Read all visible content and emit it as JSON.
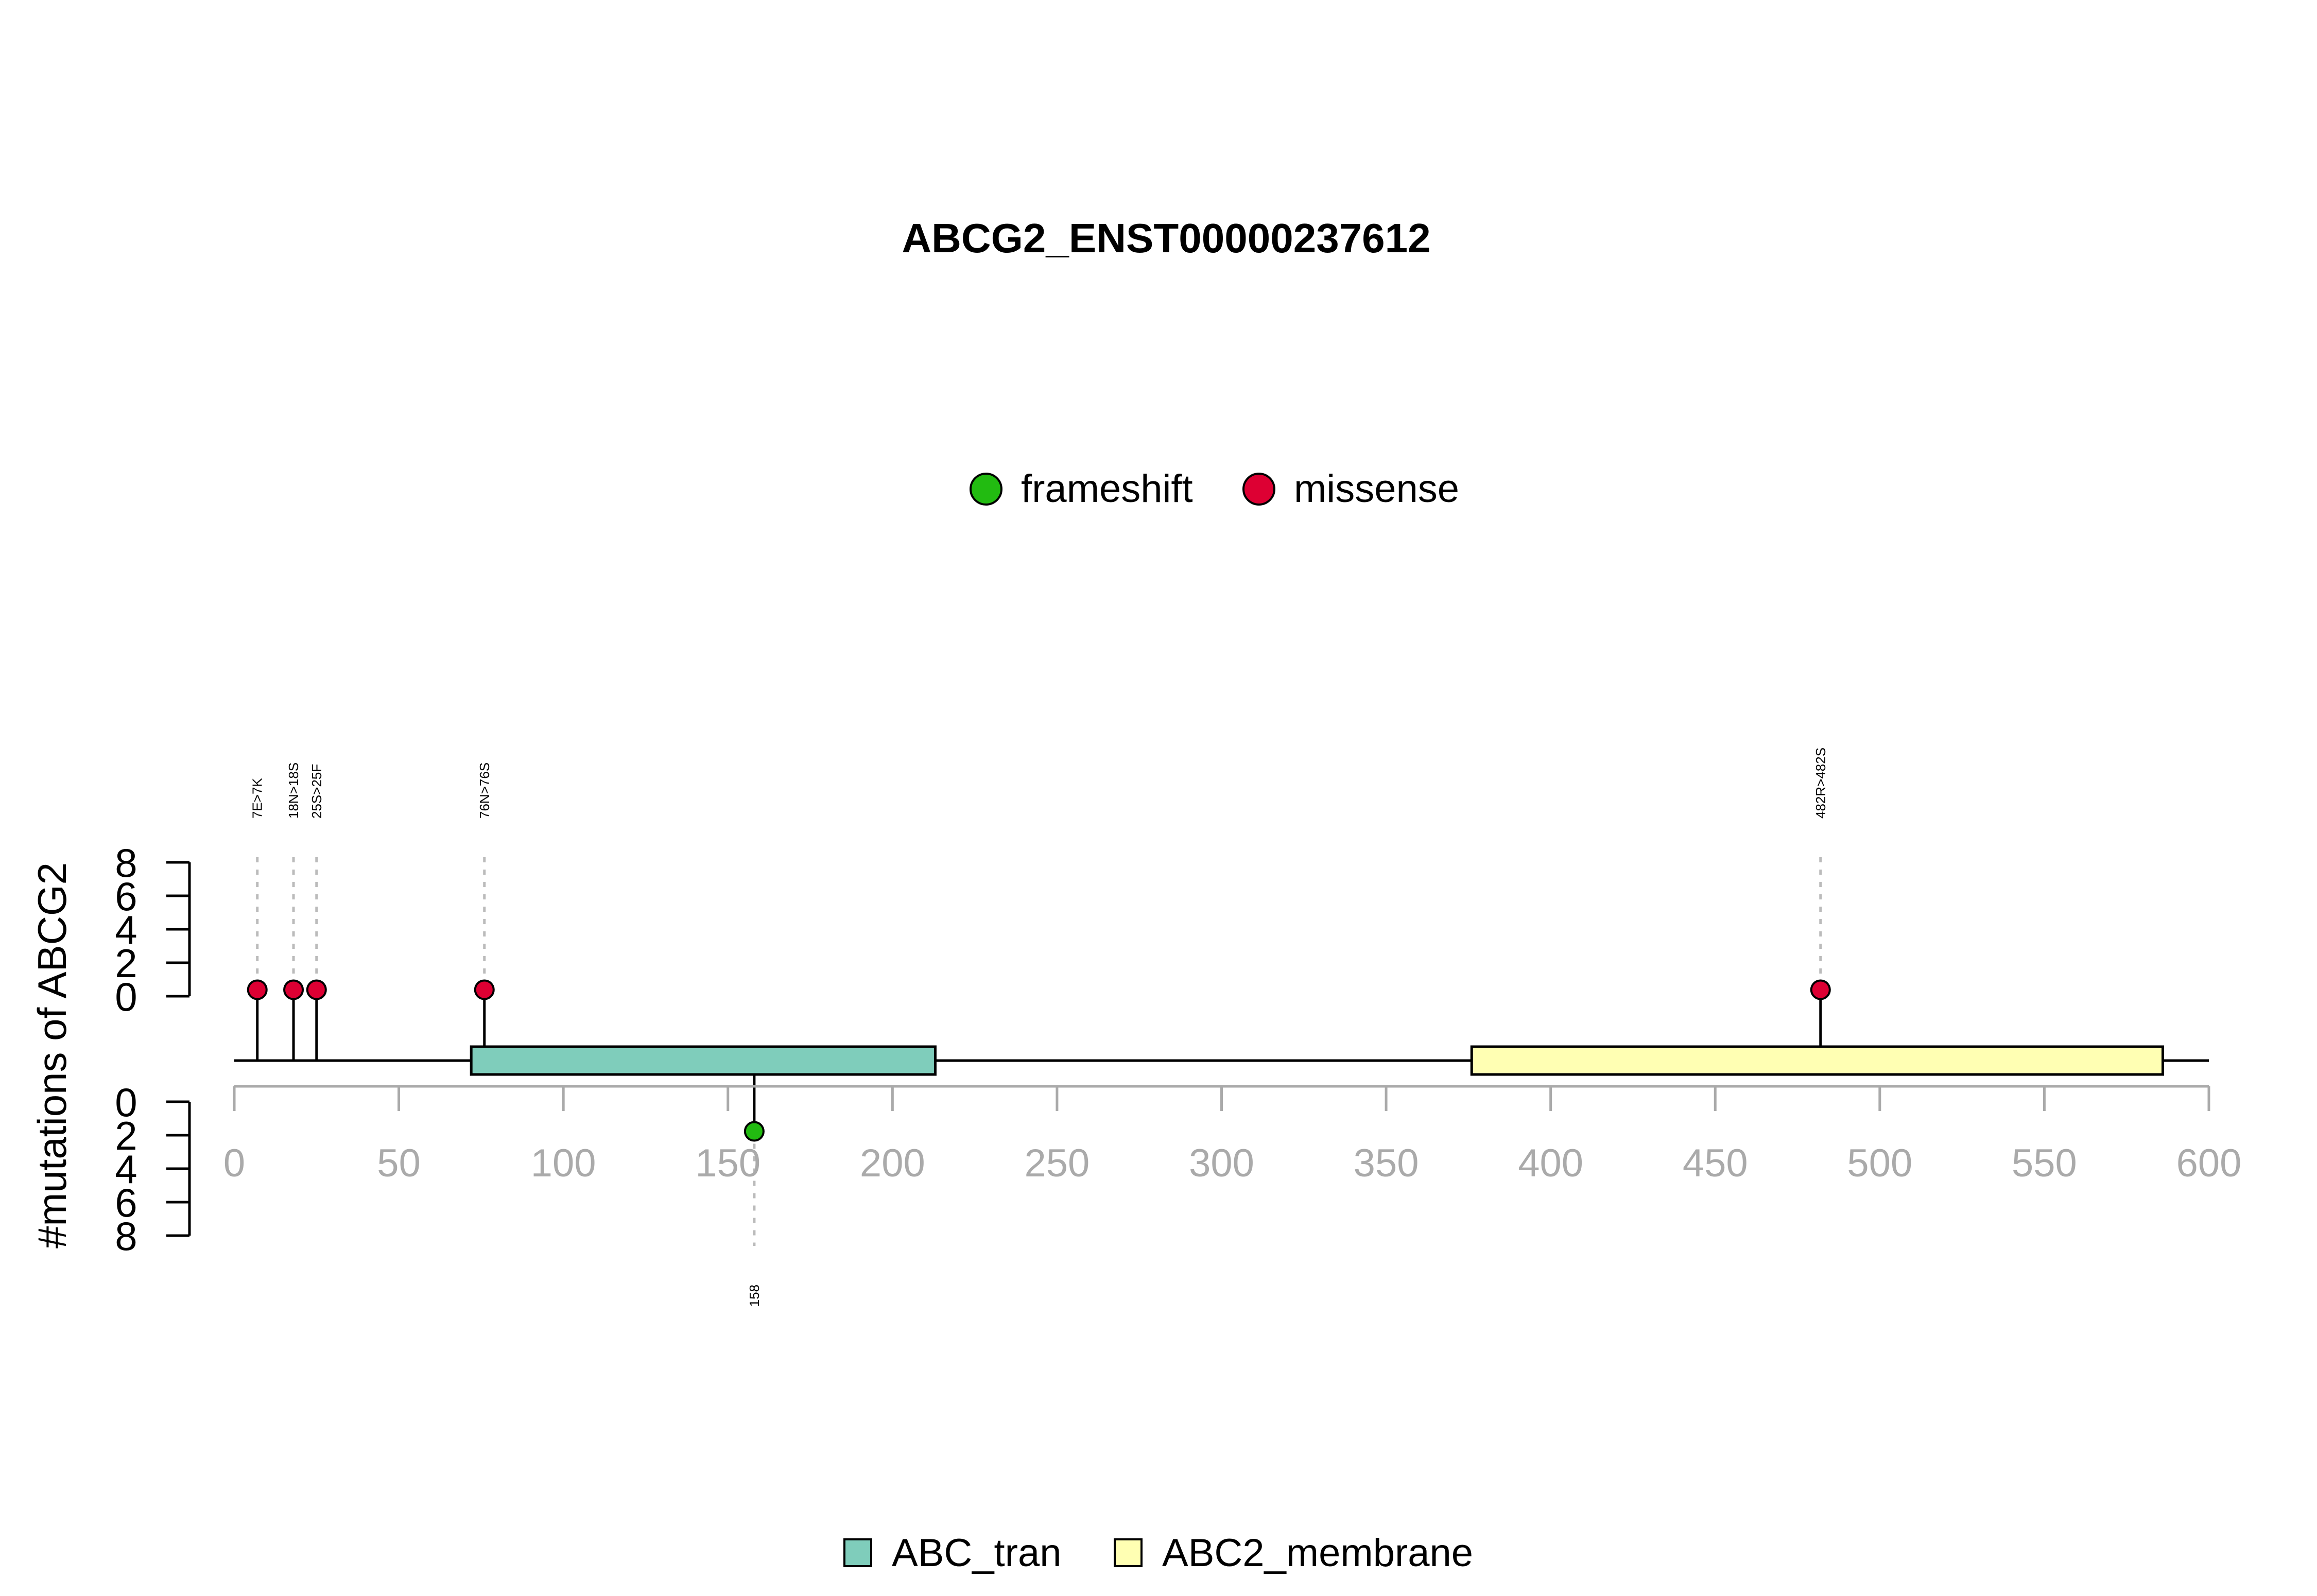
{
  "chart_data": {
    "type": "lollipop",
    "title": "ABCG2_ENST00000237612",
    "ylabel": "#mutations of ABCG2",
    "x_axis": {
      "min": 0,
      "max": 600,
      "ticks": [
        0,
        50,
        100,
        150,
        200,
        250,
        300,
        350,
        400,
        450,
        500,
        550,
        600
      ]
    },
    "y_axis": {
      "upper_ticks": [
        0,
        2,
        4,
        6,
        8
      ],
      "lower_ticks": [
        0,
        2,
        4,
        6,
        8
      ],
      "upper_range": [
        0,
        8
      ],
      "lower_range": [
        0,
        8
      ]
    },
    "legend_types": [
      {
        "label": "frameshift",
        "color": "#22bb11"
      },
      {
        "label": "missense",
        "color": "#dd0033"
      }
    ],
    "legend_domains": [
      {
        "label": "ABC_tran",
        "color": "#7fcdbb"
      },
      {
        "label": "ABC2_membrane",
        "color": "#ffffb3"
      }
    ],
    "domains": [
      {
        "name": "ABC_tran",
        "start": 72,
        "end": 213,
        "color": "#7fcdbb"
      },
      {
        "name": "ABC2_membrane",
        "start": 376,
        "end": 586,
        "color": "#ffffb3"
      }
    ],
    "mutations": [
      {
        "pos": 7,
        "label": "7E>7K",
        "type": "missense",
        "count": 1,
        "side": "up"
      },
      {
        "pos": 18,
        "label": "18N>18S",
        "type": "missense",
        "count": 1,
        "side": "up"
      },
      {
        "pos": 25,
        "label": "25S>25F",
        "type": "missense",
        "count": 1,
        "side": "up"
      },
      {
        "pos": 76,
        "label": "76N>76S",
        "type": "missense",
        "count": 1,
        "side": "up"
      },
      {
        "pos": 482,
        "label": "482R>482S",
        "type": "missense",
        "count": 1,
        "side": "up"
      },
      {
        "pos": 158,
        "label": "158",
        "type": "frameshift",
        "count": 1,
        "side": "down"
      }
    ],
    "colors": {
      "axis_gray": "#aaaaaa",
      "backbone": "#000000",
      "guide": "#bbbbbb"
    }
  }
}
